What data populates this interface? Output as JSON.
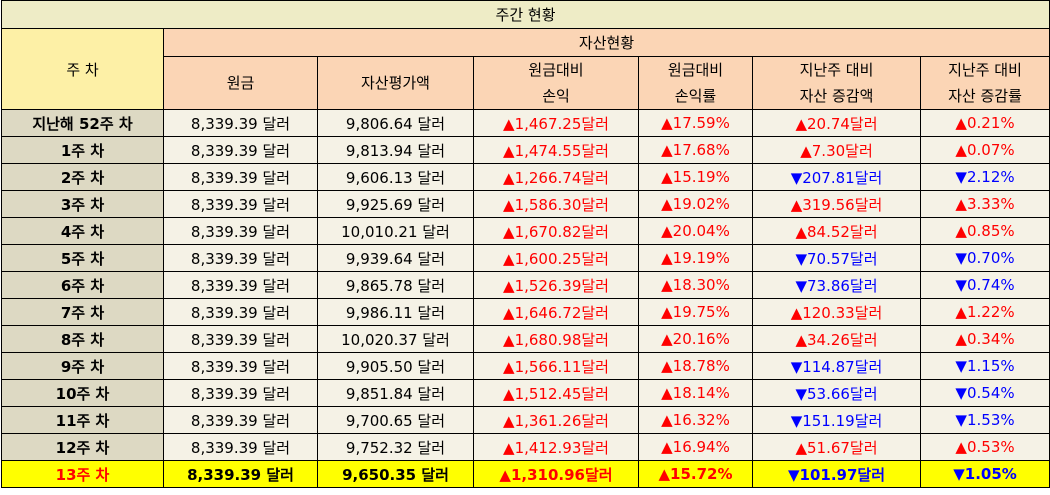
{
  "title": "주간 현황",
  "headers": {
    "week": "주 차",
    "asset_status": "자산현황",
    "principal": "원금",
    "valuation": "자산평가액",
    "pl_line1": "원금대비",
    "pl_line2": "손익",
    "plr_line1": "원금대비",
    "plr_line2": "손익률",
    "chg_line1": "지난주 대비",
    "chg_line2": "자산 증감액",
    "chgr_line1": "지난주 대비",
    "chgr_line2": "자산 증감률"
  },
  "colors": {
    "up": "#ff0000",
    "down": "#0000ff",
    "current_row": "#ffff00"
  },
  "rows": [
    {
      "week": "지난해 52주 차",
      "principal": "8,339.39 달러",
      "valuation": "9,806.64 달러",
      "pl": "▲1,467.25달러",
      "pl_dir": "up",
      "plr": "▲17.59%",
      "plr_dir": "up",
      "chg": "▲20.74달러",
      "chg_dir": "up",
      "chgr": "▲0.21%",
      "chgr_dir": "up"
    },
    {
      "week": "1주 차",
      "principal": "8,339.39 달러",
      "valuation": "9,813.94 달러",
      "pl": "▲1,474.55달러",
      "pl_dir": "up",
      "plr": "▲17.68%",
      "plr_dir": "up",
      "chg": "▲7.30달러",
      "chg_dir": "up",
      "chgr": "▲0.07%",
      "chgr_dir": "up"
    },
    {
      "week": "2주 차",
      "principal": "8,339.39 달러",
      "valuation": "9,606.13 달러",
      "pl": "▲1,266.74달러",
      "pl_dir": "up",
      "plr": "▲15.19%",
      "plr_dir": "up",
      "chg": "▼207.81달러",
      "chg_dir": "down",
      "chgr": "▼2.12%",
      "chgr_dir": "down"
    },
    {
      "week": "3주 차",
      "principal": "8,339.39 달러",
      "valuation": "9,925.69 달러",
      "pl": "▲1,586.30달러",
      "pl_dir": "up",
      "plr": "▲19.02%",
      "plr_dir": "up",
      "chg": "▲319.56달러",
      "chg_dir": "up",
      "chgr": "▲3.33%",
      "chgr_dir": "up"
    },
    {
      "week": "4주 차",
      "principal": "8,339.39 달러",
      "valuation": "10,010.21 달러",
      "pl": "▲1,670.82달러",
      "pl_dir": "up",
      "plr": "▲20.04%",
      "plr_dir": "up",
      "chg": "▲84.52달러",
      "chg_dir": "up",
      "chgr": "▲0.85%",
      "chgr_dir": "up"
    },
    {
      "week": "5주 차",
      "principal": "8,339.39 달러",
      "valuation": "9,939.64 달러",
      "pl": "▲1,600.25달러",
      "pl_dir": "up",
      "plr": "▲19.19%",
      "plr_dir": "up",
      "chg": "▼70.57달러",
      "chg_dir": "down",
      "chgr": "▼0.70%",
      "chgr_dir": "down"
    },
    {
      "week": "6주 차",
      "principal": "8,339.39 달러",
      "valuation": "9,865.78 달러",
      "pl": "▲1,526.39달러",
      "pl_dir": "up",
      "plr": "▲18.30%",
      "plr_dir": "up",
      "chg": "▼73.86달러",
      "chg_dir": "down",
      "chgr": "▼0.74%",
      "chgr_dir": "down"
    },
    {
      "week": "7주 차",
      "principal": "8,339.39 달러",
      "valuation": "9,986.11 달러",
      "pl": "▲1,646.72달러",
      "pl_dir": "up",
      "plr": "▲19.75%",
      "plr_dir": "up",
      "chg": "▲120.33달러",
      "chg_dir": "up",
      "chgr": "▲1.22%",
      "chgr_dir": "up"
    },
    {
      "week": "8주 차",
      "principal": "8,339.39 달러",
      "valuation": "10,020.37 달러",
      "pl": "▲1,680.98달러",
      "pl_dir": "up",
      "plr": "▲20.16%",
      "plr_dir": "up",
      "chg": "▲34.26달러",
      "chg_dir": "up",
      "chgr": "▲0.34%",
      "chgr_dir": "up"
    },
    {
      "week": "9주 차",
      "principal": "8,339.39 달러",
      "valuation": "9,905.50 달러",
      "pl": "▲1,566.11달러",
      "pl_dir": "up",
      "plr": "▲18.78%",
      "plr_dir": "up",
      "chg": "▼114.87달러",
      "chg_dir": "down",
      "chgr": "▼1.15%",
      "chgr_dir": "down"
    },
    {
      "week": "10주 차",
      "principal": "8,339.39 달러",
      "valuation": "9,851.84 달러",
      "pl": "▲1,512.45달러",
      "pl_dir": "up",
      "plr": "▲18.14%",
      "plr_dir": "up",
      "chg": "▼53.66달러",
      "chg_dir": "down",
      "chgr": "▼0.54%",
      "chgr_dir": "down"
    },
    {
      "week": "11주 차",
      "principal": "8,339.39 달러",
      "valuation": "9,700.65 달러",
      "pl": "▲1,361.26달러",
      "pl_dir": "up",
      "plr": "▲16.32%",
      "plr_dir": "up",
      "chg": "▼151.19달러",
      "chg_dir": "down",
      "chgr": "▼1.53%",
      "chgr_dir": "down"
    },
    {
      "week": "12주 차",
      "principal": "8,339.39 달러",
      "valuation": "9,752.32 달러",
      "pl": "▲1,412.93달러",
      "pl_dir": "up",
      "plr": "▲16.94%",
      "plr_dir": "up",
      "chg": "▲51.67달러",
      "chg_dir": "up",
      "chgr": "▲0.53%",
      "chgr_dir": "up"
    },
    {
      "week": "13주 차",
      "principal": "8,339.39 달러",
      "valuation": "9,650.35 달러",
      "pl": "▲1,310.96달러",
      "pl_dir": "up",
      "plr": "▲15.72%",
      "plr_dir": "up",
      "chg": "▼101.97달러",
      "chg_dir": "down",
      "chgr": "▼1.05%",
      "chgr_dir": "down",
      "current": true
    }
  ]
}
